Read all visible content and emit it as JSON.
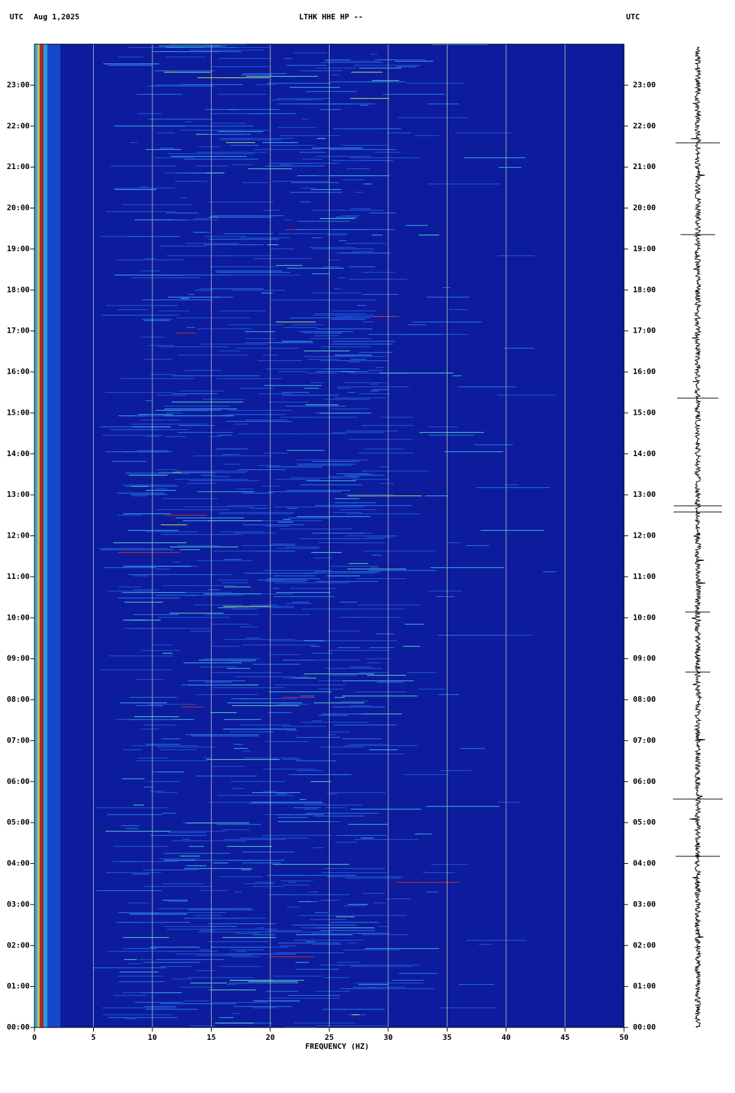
{
  "chart_data": {
    "type": "spectrogram",
    "title": "LTHK HHE HP --",
    "left_label": "UTC",
    "date": "Aug 1,2025",
    "right_label": "UTC",
    "x_label": "FREQUENCY (HZ)",
    "xlim": [
      0,
      50
    ],
    "xticks": [
      0,
      5,
      10,
      15,
      20,
      25,
      30,
      35,
      40,
      45,
      50
    ],
    "ylim": [
      0,
      24
    ],
    "yticks": [
      {
        "value": 0,
        "label": "00:00"
      },
      {
        "value": 1,
        "label": "01:00"
      },
      {
        "value": 2,
        "label": "02:00"
      },
      {
        "value": 3,
        "label": "03:00"
      },
      {
        "value": 4,
        "label": "04:00"
      },
      {
        "value": 5,
        "label": "05:00"
      },
      {
        "value": 6,
        "label": "06:00"
      },
      {
        "value": 7,
        "label": "07:00"
      },
      {
        "value": 8,
        "label": "08:00"
      },
      {
        "value": 9,
        "label": "09:00"
      },
      {
        "value": 10,
        "label": "10:00"
      },
      {
        "value": 11,
        "label": "11:00"
      },
      {
        "value": 12,
        "label": "12:00"
      },
      {
        "value": 13,
        "label": "13:00"
      },
      {
        "value": 14,
        "label": "14:00"
      },
      {
        "value": 15,
        "label": "15:00"
      },
      {
        "value": 16,
        "label": "16:00"
      },
      {
        "value": 17,
        "label": "17:00"
      },
      {
        "value": 18,
        "label": "18:00"
      },
      {
        "value": 19,
        "label": "19:00"
      },
      {
        "value": 20,
        "label": "20:00"
      },
      {
        "value": 21,
        "label": "21:00"
      },
      {
        "value": 22,
        "label": "22:00"
      },
      {
        "value": 23,
        "label": "23:00"
      }
    ],
    "grid": true,
    "grid_color": "#a8a8a8",
    "background_color": "#0c1c9c"
  }
}
